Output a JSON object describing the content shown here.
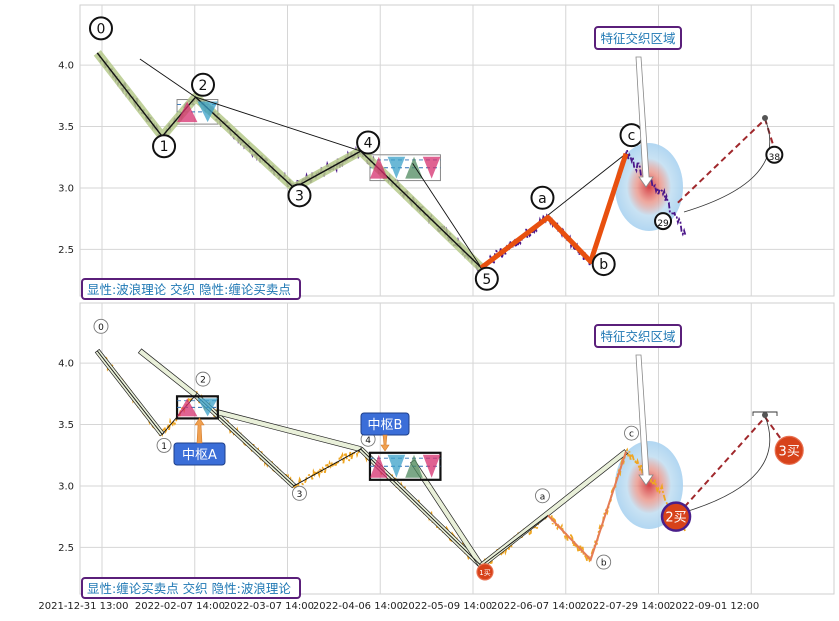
{
  "chart_data": [
    {
      "type": "line",
      "panel": "top",
      "caption": "显性:波浪理论 交织 隐性:缠论买卖点",
      "callout": "特征交织区域",
      "y_ticks": [
        "2.5",
        "3.0",
        "3.5",
        "4.0"
      ],
      "ylim": [
        2.12,
        4.49
      ],
      "grid": true,
      "wave_labels": [
        {
          "t": "0",
          "x": 7,
          "y": 4.3
        },
        {
          "t": "1",
          "x": 41,
          "y": 3.34
        },
        {
          "t": "2",
          "x": 62,
          "y": 3.84
        },
        {
          "t": "3",
          "x": 114,
          "y": 2.94
        },
        {
          "t": "4",
          "x": 151,
          "y": 3.37
        },
        {
          "t": "5",
          "x": 215,
          "y": 2.26
        },
        {
          "t": "a",
          "x": 245,
          "y": 2.92
        },
        {
          "t": "b",
          "x": 278,
          "y": 2.38
        },
        {
          "t": "c",
          "x": 293,
          "y": 3.43
        },
        {
          "t": "29",
          "x": 310,
          "y": 2.73
        },
        {
          "t": "38",
          "x": 370,
          "y": 3.27
        }
      ],
      "impulse_path": [
        [
          5,
          4.1
        ],
        [
          40,
          3.42
        ],
        [
          58,
          3.74
        ],
        [
          111,
          3.0
        ],
        [
          147,
          3.3
        ],
        [
          212,
          2.35
        ]
      ],
      "correction_path": [
        [
          212,
          2.35
        ],
        [
          248,
          2.76
        ],
        [
          271,
          2.4
        ],
        [
          290,
          3.28
        ]
      ],
      "projection_path": [
        [
          318,
          2.88
        ],
        [
          365,
          3.56
        ],
        [
          372,
          3.22
        ]
      ],
      "hubs": [
        {
          "x0": 48,
          "x1": 70,
          "ylo": 3.52,
          "yhi": 3.72
        },
        {
          "x0": 152,
          "x1": 190,
          "ylo": 3.06,
          "yhi": 3.27
        }
      ]
    },
    {
      "type": "line",
      "panel": "bottom",
      "caption": "显性:缠论买卖点 交织 隐性:波浪理论",
      "callout": "特征交织区域",
      "y_ticks": [
        "2.5",
        "3.0",
        "3.5",
        "4.0"
      ],
      "ylim": [
        2.12,
        4.49
      ],
      "grid": true,
      "x_ticks": [
        "2021-12-31 13:00",
        "2022-02-07 14:00",
        "2022-03-07 14:00",
        "2022-04-06 14:00",
        "2022-05-09 14:00",
        "2022-06-07 14:00",
        "2022-07-29 14:00",
        "2022-09-01 12:00"
      ],
      "hub_labels": [
        "中枢A",
        "中枢B"
      ],
      "signals": [
        {
          "t": "1买",
          "x": 214,
          "y": 2.3
        },
        {
          "t": "2买",
          "x": 317,
          "y": 2.75
        },
        {
          "t": "3买",
          "x": 378,
          "y": 3.29
        }
      ],
      "wave_labels": [
        {
          "t": "0",
          "x": 7,
          "y": 4.3
        },
        {
          "t": "1",
          "x": 41,
          "y": 3.33
        },
        {
          "t": "2",
          "x": 62,
          "y": 3.87
        },
        {
          "t": "3",
          "x": 114,
          "y": 2.94
        },
        {
          "t": "4",
          "x": 151,
          "y": 3.38
        },
        {
          "t": "a",
          "x": 245,
          "y": 2.92
        },
        {
          "t": "b",
          "x": 278,
          "y": 2.38
        },
        {
          "t": "c",
          "x": 293,
          "y": 3.43
        }
      ],
      "stroke_path": [
        [
          5,
          4.1
        ],
        [
          40,
          3.42
        ],
        [
          58,
          3.74
        ],
        [
          111,
          3.0
        ],
        [
          147,
          3.3
        ],
        [
          212,
          2.35
        ],
        [
          248,
          2.76
        ],
        [
          271,
          2.4
        ],
        [
          290,
          3.28
        ]
      ],
      "projection_path": [
        [
          318,
          2.77
        ],
        [
          365,
          3.56
        ],
        [
          378,
          3.29
        ]
      ],
      "hubs": [
        {
          "x0": 48,
          "x1": 70,
          "ylo": 3.55,
          "yhi": 3.73
        },
        {
          "x0": 152,
          "x1": 190,
          "ylo": 3.05,
          "yhi": 3.27
        }
      ]
    }
  ],
  "colors": {
    "price_top": "#4b1689",
    "price_bottom": "#efa622",
    "impulse_highlight": "#b5c989",
    "correction": "#e8500f",
    "projection": "#a0282c",
    "hub_box": "#1a1a1a",
    "caption_text": "#1f78b4",
    "caption_border": "#5a1f7a",
    "signal_fill": "#d7421a",
    "hub_label_fill": "#3b6ed8"
  }
}
